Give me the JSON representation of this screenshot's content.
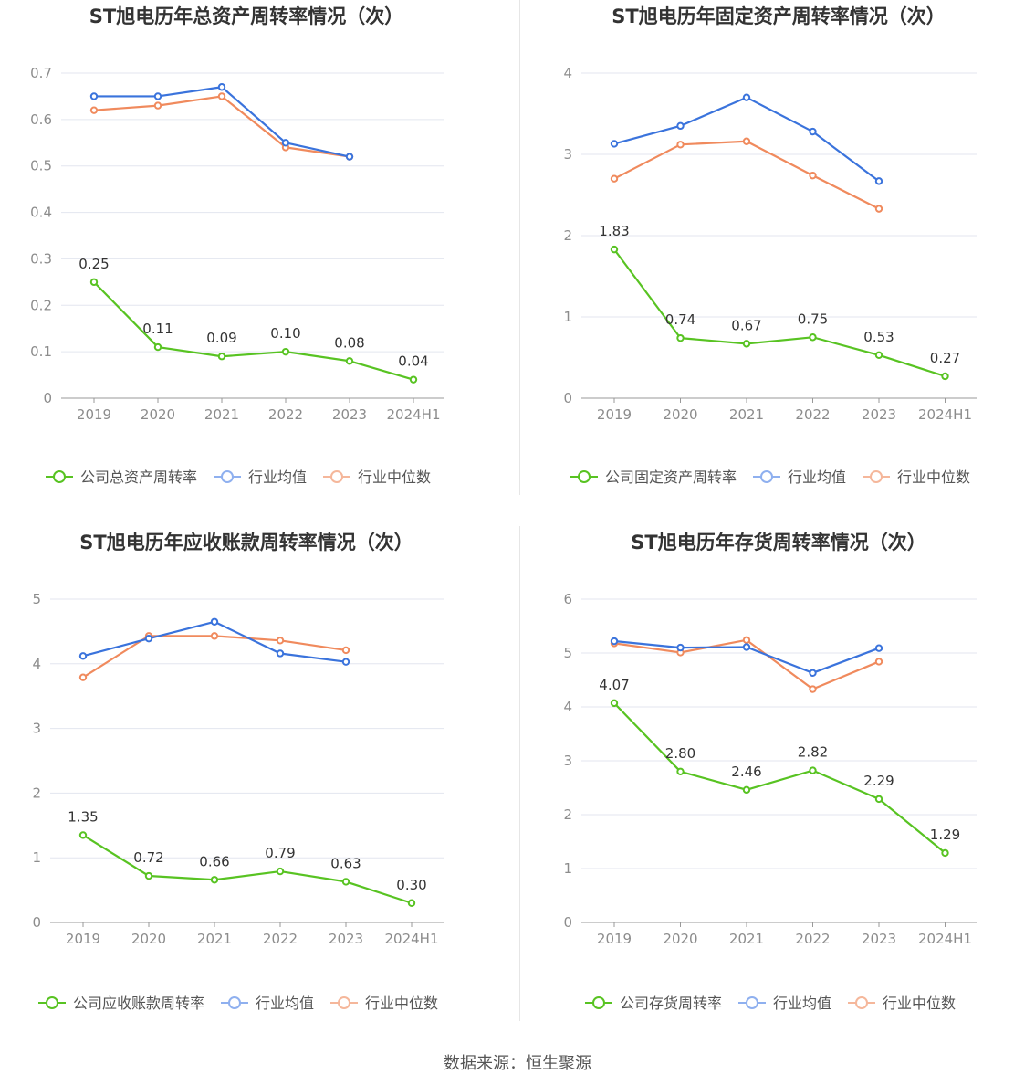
{
  "footer": {
    "source": "数据来源：恒生聚源"
  },
  "colors": {
    "company": "#58c322",
    "avg": "#3a73dc",
    "median": "#f08a5d",
    "grid": "#e3e6ef",
    "axis": "#999999"
  },
  "charts": [
    {
      "title": "ST旭电历年总资产周转率情况（次）",
      "type": "line",
      "categories": [
        "2019",
        "2020",
        "2021",
        "2022",
        "2023",
        "2024H1"
      ],
      "yticks": [
        "0",
        "0.1",
        "0.2",
        "0.3",
        "0.4",
        "0.5",
        "0.6",
        "0.7"
      ],
      "ylim": [
        0,
        0.7
      ],
      "series": [
        {
          "name": "公司总资产周转率",
          "key": "company",
          "values": [
            0.25,
            0.11,
            0.09,
            0.1,
            0.08,
            0.04
          ],
          "labels": [
            "0.25",
            "0.11",
            "0.09",
            "0.10",
            "0.08",
            "0.04"
          ]
        },
        {
          "name": "行业均值",
          "key": "avg",
          "values": [
            0.65,
            0.65,
            0.67,
            0.55,
            0.52,
            null
          ]
        },
        {
          "name": "行业中位数",
          "key": "median",
          "values": [
            0.62,
            0.63,
            0.65,
            0.54,
            0.52,
            null
          ]
        }
      ]
    },
    {
      "title": "ST旭电历年固定资产周转率情况（次）",
      "type": "line",
      "categories": [
        "2019",
        "2020",
        "2021",
        "2022",
        "2023",
        "2024H1"
      ],
      "yticks": [
        "0",
        "1",
        "2",
        "3",
        "4"
      ],
      "ylim": [
        0,
        4
      ],
      "series": [
        {
          "name": "公司固定资产周转率",
          "key": "company",
          "values": [
            1.83,
            0.74,
            0.67,
            0.75,
            0.53,
            0.27
          ],
          "labels": [
            "1.83",
            "0.74",
            "0.67",
            "0.75",
            "0.53",
            "0.27"
          ]
        },
        {
          "name": "行业均值",
          "key": "avg",
          "values": [
            3.13,
            3.35,
            3.7,
            3.28,
            2.67,
            null
          ]
        },
        {
          "name": "行业中位数",
          "key": "median",
          "values": [
            2.7,
            3.12,
            3.16,
            2.74,
            2.33,
            null
          ]
        }
      ]
    },
    {
      "title": "ST旭电历年应收账款周转率情况（次）",
      "type": "line",
      "categories": [
        "2019",
        "2020",
        "2021",
        "2022",
        "2023",
        "2024H1"
      ],
      "yticks": [
        "0",
        "1",
        "2",
        "3",
        "4",
        "5"
      ],
      "ylim": [
        0,
        5
      ],
      "series": [
        {
          "name": "公司应收账款周转率",
          "key": "company",
          "values": [
            1.35,
            0.72,
            0.66,
            0.79,
            0.63,
            0.3
          ],
          "labels": [
            "1.35",
            "0.72",
            "0.66",
            "0.79",
            "0.63",
            "0.30"
          ]
        },
        {
          "name": "行业均值",
          "key": "avg",
          "values": [
            4.12,
            4.39,
            4.65,
            4.16,
            4.03,
            null
          ]
        },
        {
          "name": "行业中位数",
          "key": "median",
          "values": [
            3.79,
            4.43,
            4.43,
            4.36,
            4.21,
            null
          ]
        }
      ]
    },
    {
      "title": "ST旭电历年存货周转率情况（次）",
      "type": "line",
      "categories": [
        "2019",
        "2020",
        "2021",
        "2022",
        "2023",
        "2024H1"
      ],
      "yticks": [
        "0",
        "1",
        "2",
        "3",
        "4",
        "5",
        "6"
      ],
      "ylim": [
        0,
        6
      ],
      "series": [
        {
          "name": "公司存货周转率",
          "key": "company",
          "values": [
            4.07,
            2.8,
            2.46,
            2.82,
            2.29,
            1.29
          ],
          "labels": [
            "4.07",
            "2.80",
            "2.46",
            "2.82",
            "2.29",
            "1.29"
          ]
        },
        {
          "name": "行业均值",
          "key": "avg",
          "values": [
            5.22,
            5.1,
            5.11,
            4.63,
            5.09,
            null
          ]
        },
        {
          "name": "行业中位数",
          "key": "median",
          "values": [
            5.18,
            5.01,
            5.24,
            4.33,
            4.84,
            null
          ]
        }
      ]
    }
  ]
}
